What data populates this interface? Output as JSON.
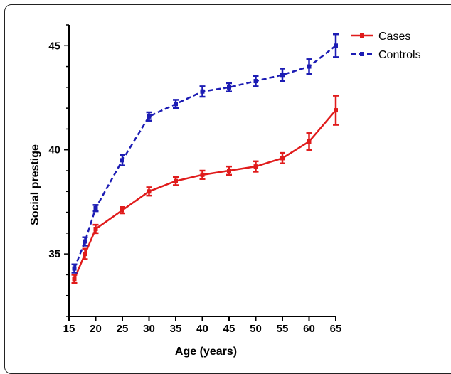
{
  "chart_data": {
    "type": "line",
    "x": [
      16,
      18,
      20,
      25,
      30,
      35,
      40,
      45,
      50,
      55,
      60,
      65
    ],
    "xticks": [
      15,
      20,
      25,
      30,
      35,
      40,
      45,
      50,
      55,
      60,
      65
    ],
    "xtick_labels": [
      "15",
      "20",
      "25",
      "30",
      "35",
      "40",
      "45",
      "50",
      "55",
      "60",
      "65"
    ],
    "yticks": [
      35,
      40,
      45
    ],
    "ytick_labels": [
      "35",
      "40",
      "45"
    ],
    "xlim": [
      15,
      65
    ],
    "ylim": [
      32,
      46
    ],
    "xlabel": "Age (years)",
    "ylabel": "Social prestige",
    "legend_position": "top-right",
    "series": [
      {
        "name": "Cases",
        "color": "#e01b1b",
        "dash": "solid",
        "values": [
          33.8,
          35.0,
          36.2,
          37.1,
          38.0,
          38.5,
          38.8,
          39.0,
          39.2,
          39.6,
          40.4,
          41.9
        ],
        "errors": [
          0.2,
          0.25,
          0.2,
          0.15,
          0.2,
          0.2,
          0.2,
          0.2,
          0.25,
          0.25,
          0.4,
          0.7
        ]
      },
      {
        "name": "Controls",
        "color": "#1c1cb4",
        "dash": "dashed",
        "values": [
          34.3,
          35.6,
          37.2,
          39.5,
          41.6,
          42.2,
          42.8,
          43.0,
          43.3,
          43.6,
          44.0,
          45.0
        ],
        "errors": [
          0.2,
          0.2,
          0.15,
          0.25,
          0.2,
          0.2,
          0.25,
          0.2,
          0.25,
          0.3,
          0.35,
          0.55
        ]
      }
    ]
  }
}
